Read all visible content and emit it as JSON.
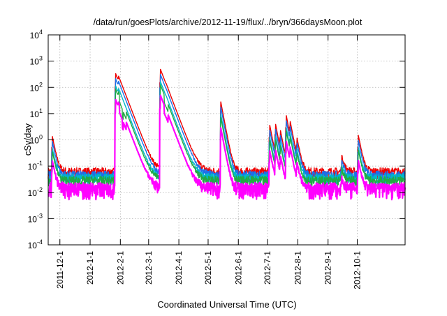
{
  "chart_data": {
    "type": "line",
    "title": "/data/run/goesPlots/archive/2012-11-19/flux/../bryn/366daysMoon.plot",
    "xlabel": "Coordinated Universal Time (UTC)",
    "ylabel": "cSv/day",
    "yscale": "log",
    "ylim": [
      0.0001,
      10000
    ],
    "ytick_exponents": [
      -4,
      -3,
      -2,
      -1,
      0,
      1,
      2,
      3,
      4
    ],
    "ytick_base": "10",
    "xlim": [
      "2011-11-19",
      "2012-11-19"
    ],
    "xticks": [
      {
        "label": "2011-12-1",
        "day": 12
      },
      {
        "label": "2012-1-1",
        "day": 43
      },
      {
        "label": "2012-2-1",
        "day": 74
      },
      {
        "label": "2012-3-1",
        "day": 103
      },
      {
        "label": "2012-4-1",
        "day": 134
      },
      {
        "label": "2012-5-1",
        "day": 164
      },
      {
        "label": "2012-6-1",
        "day": 195
      },
      {
        "label": "2012-7-1",
        "day": 225
      },
      {
        "label": "2012-8-1",
        "day": 256
      },
      {
        "label": "2012-9-1",
        "day": 287
      },
      {
        "label": "2012-10-1",
        "day": 317
      }
    ],
    "grid": true,
    "series": [
      {
        "name": "red",
        "color": "#ee0000",
        "baseline": 0.06
      },
      {
        "name": "blue",
        "color": "#1e6fe8",
        "baseline": 0.045
      },
      {
        "name": "cyan",
        "color": "#00b8c8",
        "baseline": 0.035
      },
      {
        "name": "green",
        "color": "#22aa44",
        "baseline": 0.028
      },
      {
        "name": "magenta",
        "color": "#ff00ff",
        "baseline": 0.015
      }
    ],
    "events": [
      {
        "day": 4,
        "peak": 1.5
      },
      {
        "day": 69,
        "peak": 350
      },
      {
        "day": 72,
        "peak": 100
      },
      {
        "day": 115,
        "peak": 500
      },
      {
        "day": 121,
        "peak": 10
      },
      {
        "day": 177,
        "peak": 28
      },
      {
        "day": 227,
        "peak": 4
      },
      {
        "day": 233,
        "peak": 4
      },
      {
        "day": 238,
        "peak": 2
      },
      {
        "day": 244,
        "peak": 9
      },
      {
        "day": 248,
        "peak": 4
      },
      {
        "day": 255,
        "peak": 1
      },
      {
        "day": 301,
        "peak": 0.2
      },
      {
        "day": 318,
        "peak": 1.5
      }
    ]
  }
}
